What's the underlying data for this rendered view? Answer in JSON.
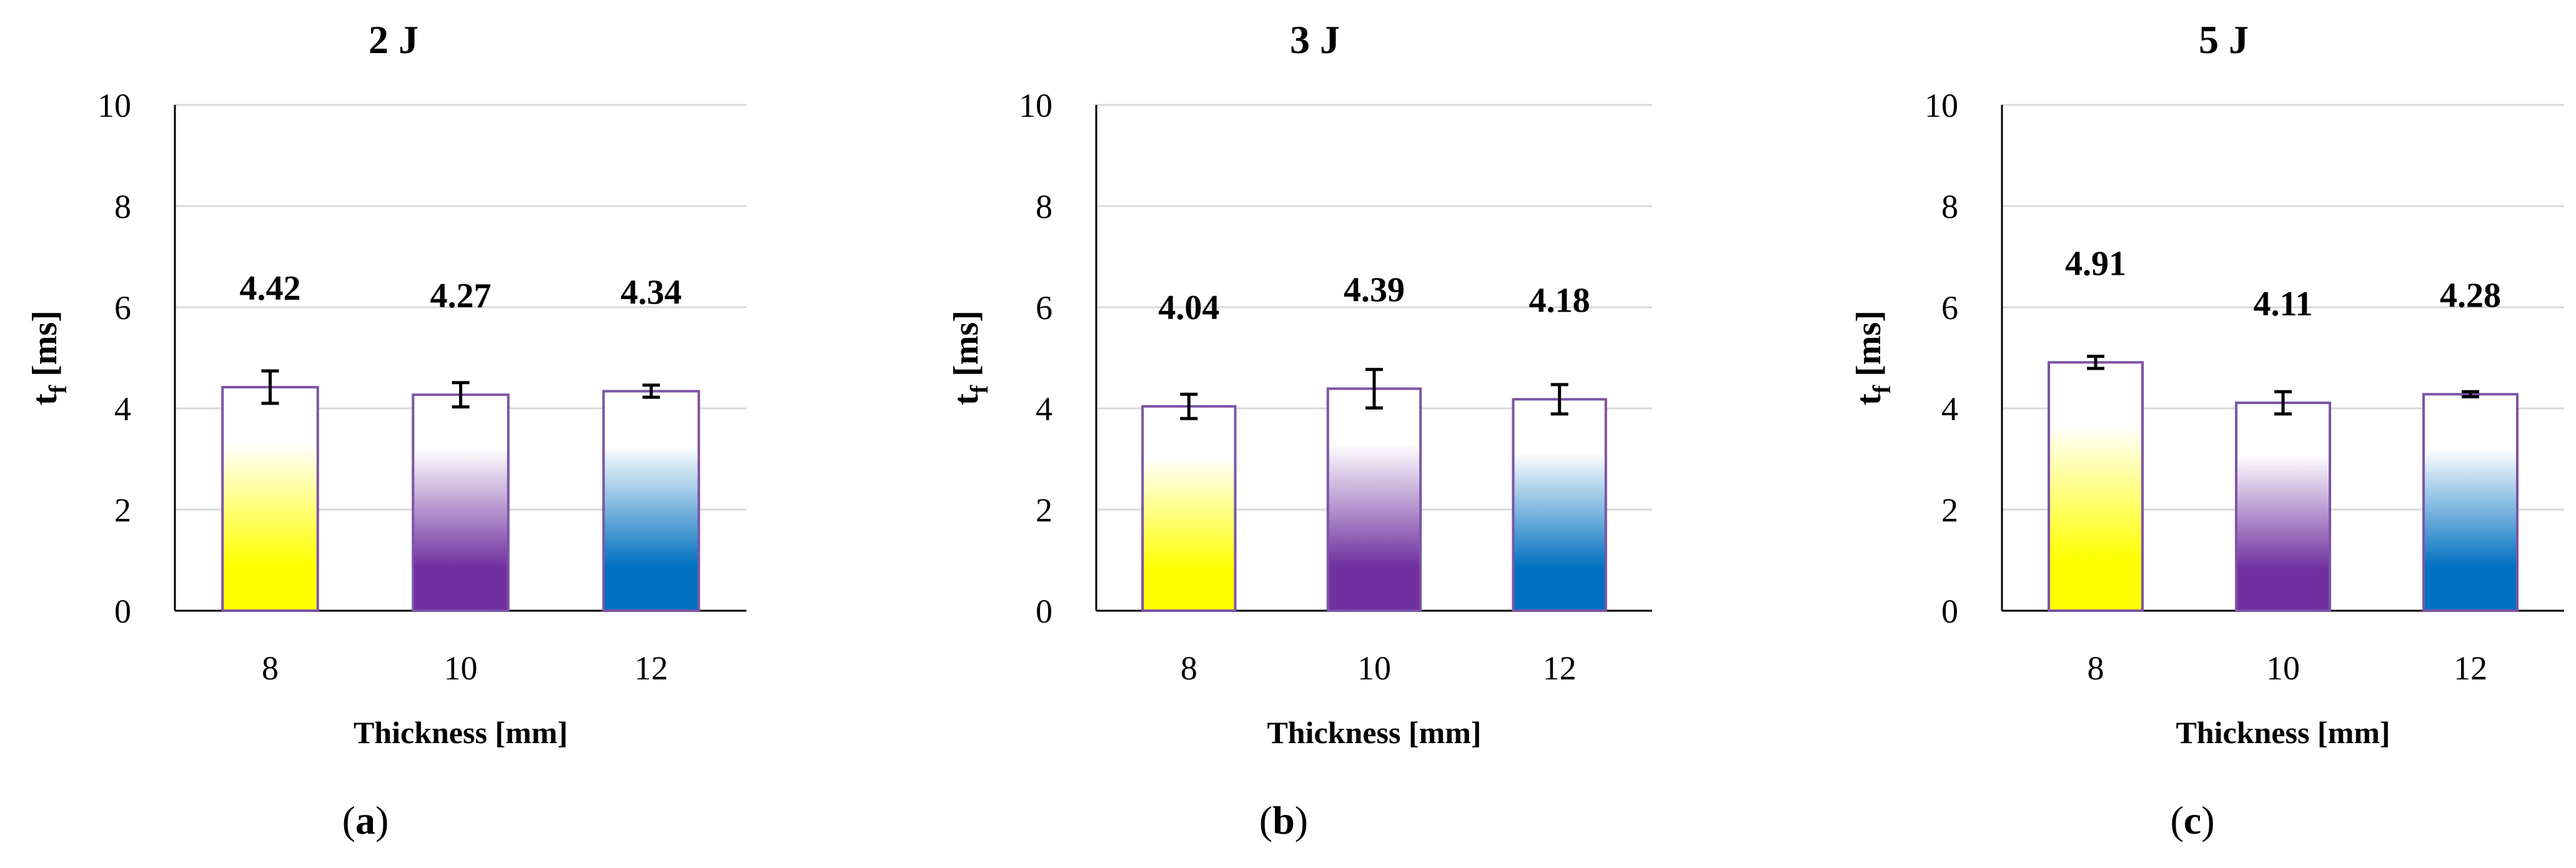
{
  "chart_data": [
    {
      "type": "bar",
      "title": "2 J",
      "sublabel": "a",
      "categories": [
        "8",
        "10",
        "12"
      ],
      "values": [
        4.42,
        4.27,
        4.34
      ],
      "value_labels": [
        "4.42",
        "4.27",
        "4.34"
      ],
      "errors": [
        0.32,
        0.24,
        0.12
      ],
      "bar_colors": [
        "#ffff00",
        "#7030a0",
        "#0070c0"
      ],
      "xlabel": "Thickness [mm]",
      "ylabel": "t",
      "ylabel_sub": "f",
      "ylabel_unit": " [ms]",
      "ylim": [
        0,
        10
      ],
      "yticks": [
        "0",
        "2",
        "4",
        "6",
        "8",
        "10"
      ],
      "grid": true
    },
    {
      "type": "bar",
      "title": "3 J",
      "sublabel": "b",
      "categories": [
        "8",
        "10",
        "12"
      ],
      "values": [
        4.04,
        4.39,
        4.18
      ],
      "value_labels": [
        "4.04",
        "4.39",
        "4.18"
      ],
      "errors": [
        0.24,
        0.38,
        0.29
      ],
      "bar_colors": [
        "#ffff00",
        "#7030a0",
        "#0070c0"
      ],
      "xlabel": "Thickness [mm]",
      "ylabel": "t",
      "ylabel_sub": "f",
      "ylabel_unit": " [ms]",
      "ylim": [
        0,
        10
      ],
      "yticks": [
        "0",
        "2",
        "4",
        "6",
        "8",
        "10"
      ],
      "grid": true
    },
    {
      "type": "bar",
      "title": "5 J",
      "sublabel": "c",
      "categories": [
        "8",
        "10",
        "12"
      ],
      "values": [
        4.91,
        4.11,
        4.28
      ],
      "value_labels": [
        "4.91",
        "4.11",
        "4.28"
      ],
      "errors": [
        0.12,
        0.22,
        0.05
      ],
      "bar_colors": [
        "#ffff00",
        "#7030a0",
        "#0070c0"
      ],
      "xlabel": "Thickness [mm]",
      "ylabel": "t",
      "ylabel_sub": "f",
      "ylabel_unit": " [ms]",
      "ylim": [
        0,
        10
      ],
      "yticks": [
        "0",
        "2",
        "4",
        "6",
        "8",
        "10"
      ],
      "grid": true
    }
  ]
}
